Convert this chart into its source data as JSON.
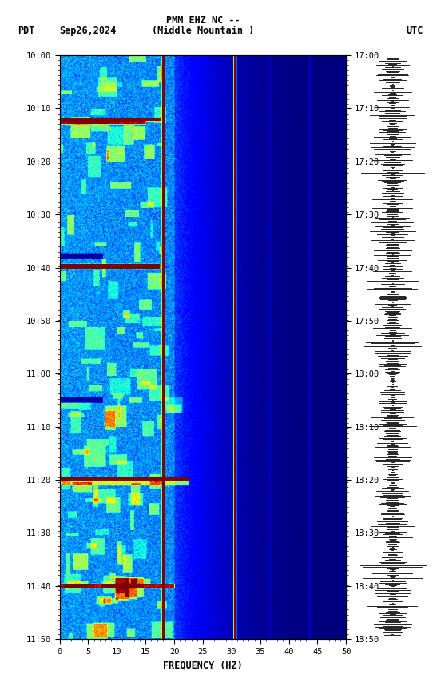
{
  "title_line1": "PMM EHZ NC --",
  "title_line2": "(Middle Mountain )",
  "date_label": "Sep26,2024",
  "tz_left": "PDT",
  "tz_right": "UTC",
  "xlabel": "FREQUENCY (HZ)",
  "freq_min": 0,
  "freq_max": 50,
  "freq_ticks": [
    0,
    5,
    10,
    15,
    20,
    25,
    30,
    35,
    40,
    45,
    50
  ],
  "time_left_labels": [
    "10:00",
    "10:10",
    "10:20",
    "10:30",
    "10:40",
    "10:50",
    "11:00",
    "11:10",
    "11:20",
    "11:30",
    "11:40",
    "11:50"
  ],
  "time_right_labels": [
    "17:00",
    "17:10",
    "17:20",
    "17:30",
    "17:40",
    "17:50",
    "18:00",
    "18:10",
    "18:20",
    "18:30",
    "18:40",
    "18:50"
  ],
  "n_time_bins": 720,
  "n_freq_bins": 500,
  "colormap": "jet",
  "bg_color": "white",
  "fig_width": 5.52,
  "fig_height": 8.64,
  "dpi": 100,
  "vline_freqs_hz": [
    18.0,
    30.5,
    36.5,
    43.5
  ],
  "vline_color": "#b8860b"
}
